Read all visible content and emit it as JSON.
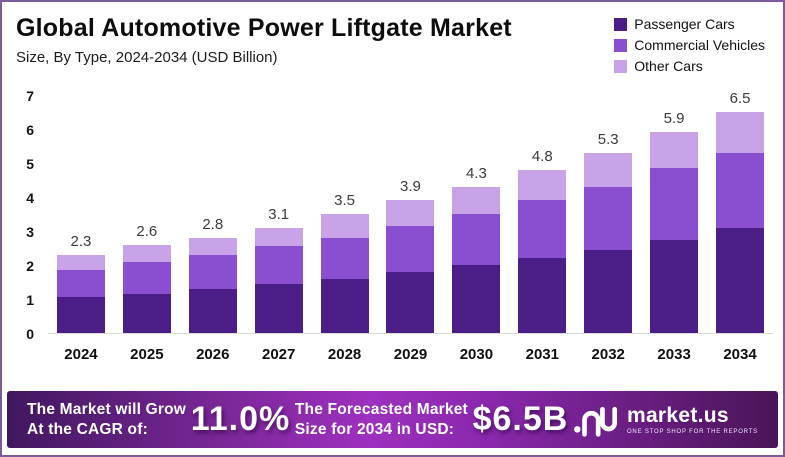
{
  "header": {
    "title": "Global Automotive Power Liftgate Market",
    "subtitle": "Size, By Type, 2024-2034 (USD Billion)"
  },
  "chart_data": {
    "type": "bar",
    "stacked": true,
    "title": "Global Automotive Power Liftgate Market",
    "subtitle": "Size, By Type, 2024-2034 (USD Billion)",
    "categories": [
      "2024",
      "2025",
      "2026",
      "2027",
      "2028",
      "2029",
      "2030",
      "2031",
      "2032",
      "2033",
      "2034"
    ],
    "series": [
      {
        "name": "Passenger Cars",
        "color": "#4b1d87",
        "values": [
          1.05,
          1.15,
          1.3,
          1.45,
          1.6,
          1.8,
          2.0,
          2.2,
          2.45,
          2.75,
          3.1
        ]
      },
      {
        "name": "Commercial Vehicles",
        "color": "#8a4fd1",
        "values": [
          0.8,
          0.95,
          1.0,
          1.1,
          1.2,
          1.35,
          1.5,
          1.7,
          1.85,
          2.1,
          2.2
        ]
      },
      {
        "name": "Other Cars",
        "color": "#c9a3e8",
        "values": [
          0.45,
          0.5,
          0.5,
          0.55,
          0.7,
          0.75,
          0.8,
          0.9,
          1.0,
          1.05,
          1.2
        ]
      }
    ],
    "totals": [
      2.3,
      2.6,
      2.8,
      3.1,
      3.5,
      3.9,
      4.3,
      4.8,
      5.3,
      5.9,
      6.5
    ],
    "xlabel": "",
    "ylabel": "",
    "ylim": [
      0,
      7
    ],
    "yticks": [
      0,
      1,
      2,
      3,
      4,
      5,
      6,
      7
    ],
    "grid": false,
    "legend_position": "top-right"
  },
  "banner": {
    "cagr_label_line1": "The Market will Grow",
    "cagr_label_line2": "At the CAGR of:",
    "cagr_value": "11.0%",
    "forecast_label_line1": "The Forecasted Market",
    "forecast_label_line2": "Size for 2034 in USD:",
    "forecast_value": "$6.5B",
    "brand": "market.us",
    "brand_tagline": "ONE STOP SHOP FOR THE REPORTS"
  },
  "colors": {
    "frame_border": "#7d5a99",
    "axis_line": "#d9d9d9",
    "banner_gradient_left": "#40175f",
    "banner_gradient_center": "#9d30bf",
    "banner_gradient_right": "#4a1458"
  }
}
